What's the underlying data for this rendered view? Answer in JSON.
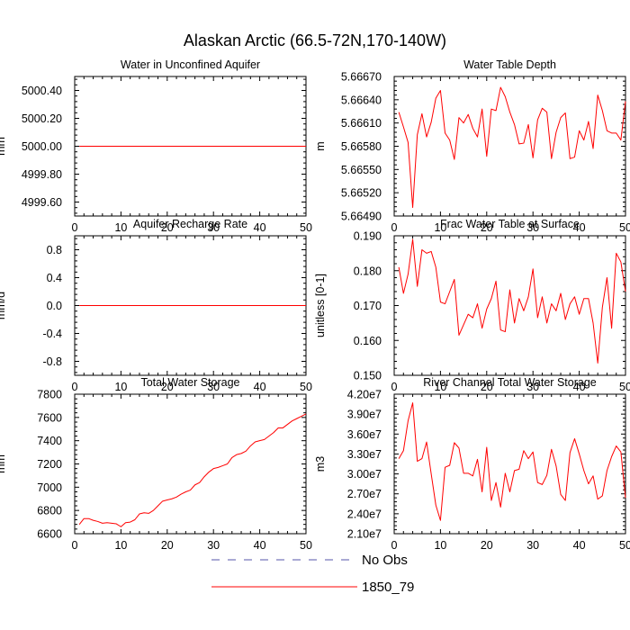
{
  "figure": {
    "title": "Alaskan Arctic (66.5-72N,170-140W)"
  },
  "chart_data": [
    {
      "type": "line",
      "title": "Water in Unconfined Aquifer",
      "ylabel": "mm",
      "xlabel": "",
      "xlim": [
        0,
        50
      ],
      "ylim": [
        4999.5,
        5000.5
      ],
      "xticks": [
        0,
        10,
        20,
        30,
        40,
        50
      ],
      "yticks": [
        4999.6,
        4999.8,
        5000.0,
        5000.2,
        5000.4
      ],
      "ytick_labels": [
        "4999.60",
        "4999.80",
        "5000.00",
        "5000.20",
        "5000.40"
      ],
      "grid": false,
      "series": [
        {
          "name": "1850_79",
          "color": "#ff0000",
          "x": [
            1,
            50
          ],
          "y": [
            5000.0,
            5000.0
          ]
        }
      ]
    },
    {
      "type": "line",
      "title": "Water Table Depth",
      "ylabel": "m",
      "xlabel": "",
      "xlim": [
        0,
        50
      ],
      "ylim": [
        5.6649,
        5.6667
      ],
      "xticks": [
        0,
        10,
        20,
        30,
        40,
        50
      ],
      "yticks": [
        5.6649,
        5.6652,
        5.6655,
        5.6658,
        5.6661,
        5.6664,
        5.6667
      ],
      "ytick_labels": [
        "5.66490",
        "5.66520",
        "5.66550",
        "5.66580",
        "5.66610",
        "5.66640",
        "5.66670"
      ],
      "grid": false,
      "series": [
        {
          "name": "1850_79",
          "color": "#ff0000",
          "x": [
            1,
            2,
            3,
            4,
            5,
            6,
            7,
            8,
            9,
            10,
            11,
            12,
            13,
            14,
            15,
            16,
            17,
            18,
            19,
            20,
            21,
            22,
            23,
            24,
            25,
            26,
            27,
            28,
            29,
            30,
            31,
            32,
            33,
            34,
            35,
            36,
            37,
            38,
            39,
            40,
            41,
            42,
            43,
            44,
            45,
            46,
            47,
            48,
            49,
            50
          ],
          "y": [
            5.66624,
            5.66605,
            5.66585,
            5.66501,
            5.66595,
            5.66622,
            5.66592,
            5.66611,
            5.66642,
            5.66652,
            5.66597,
            5.66588,
            5.66563,
            5.66617,
            5.6661,
            5.66621,
            5.66603,
            5.66592,
            5.66628,
            5.66567,
            5.66628,
            5.66626,
            5.66656,
            5.66644,
            5.66624,
            5.66608,
            5.66583,
            5.66584,
            5.66608,
            5.66565,
            5.66614,
            5.66629,
            5.66624,
            5.66564,
            5.66598,
            5.66617,
            5.66623,
            5.66564,
            5.66566,
            5.666,
            5.66588,
            5.66612,
            5.66577,
            5.66646,
            5.66626,
            5.666,
            5.66597,
            5.66597,
            5.66588,
            5.66638
          ]
        }
      ]
    },
    {
      "type": "line",
      "title": "Aquifer Recharge Rate",
      "ylabel": "mm/d",
      "xlabel": "",
      "xlim": [
        0,
        50
      ],
      "ylim": [
        -1.0,
        1.0
      ],
      "xticks": [
        0,
        10,
        20,
        30,
        40,
        50
      ],
      "yticks": [
        -0.8,
        -0.4,
        0.0,
        0.4,
        0.8
      ],
      "ytick_labels": [
        "-0.8",
        "-0.4",
        "0.0",
        "0.4",
        "0.8"
      ],
      "grid": false,
      "series": [
        {
          "name": "1850_79",
          "color": "#ff0000",
          "x": [
            1,
            50
          ],
          "y": [
            0.0,
            0.0
          ]
        }
      ]
    },
    {
      "type": "line",
      "title": "Frac Water Table at Surface",
      "ylabel": "unitless [0-1]",
      "xlabel": "",
      "xlim": [
        0,
        50
      ],
      "ylim": [
        0.15,
        0.19
      ],
      "xticks": [
        0,
        10,
        20,
        30,
        40,
        50
      ],
      "yticks": [
        0.15,
        0.16,
        0.17,
        0.18,
        0.19
      ],
      "ytick_labels": [
        "0.150",
        "0.160",
        "0.170",
        "0.180",
        "0.190"
      ],
      "grid": false,
      "series": [
        {
          "name": "1850_79",
          "color": "#ff0000",
          "x": [
            1,
            2,
            3,
            4,
            5,
            6,
            7,
            8,
            9,
            10,
            11,
            12,
            13,
            14,
            15,
            16,
            17,
            18,
            19,
            20,
            21,
            22,
            23,
            24,
            25,
            26,
            27,
            28,
            29,
            30,
            31,
            32,
            33,
            34,
            35,
            36,
            37,
            38,
            39,
            40,
            41,
            42,
            43,
            44,
            45,
            46,
            47,
            48,
            49,
            50
          ],
          "y": [
            0.181,
            0.1735,
            0.179,
            0.189,
            0.1755,
            0.186,
            0.185,
            0.1855,
            0.181,
            0.171,
            0.1705,
            0.174,
            0.1775,
            0.1615,
            0.1645,
            0.1675,
            0.1665,
            0.1705,
            0.1635,
            0.169,
            0.172,
            0.177,
            0.163,
            0.1625,
            0.1745,
            0.165,
            0.172,
            0.1685,
            0.1725,
            0.1805,
            0.1665,
            0.1725,
            0.165,
            0.1705,
            0.1685,
            0.1735,
            0.166,
            0.1705,
            0.1725,
            0.1675,
            0.172,
            0.172,
            0.165,
            0.1535,
            0.1695,
            0.178,
            0.1635,
            0.185,
            0.1825,
            0.174
          ]
        }
      ]
    },
    {
      "type": "line",
      "title": "Total Water Storage",
      "ylabel": "mm",
      "xlabel": "",
      "xlim": [
        0,
        50
      ],
      "ylim": [
        6600,
        7800
      ],
      "xticks": [
        0,
        10,
        20,
        30,
        40,
        50
      ],
      "yticks": [
        6600,
        6800,
        7000,
        7200,
        7400,
        7600,
        7800
      ],
      "ytick_labels": [
        "6600",
        "6800",
        "7000",
        "7200",
        "7400",
        "7600",
        "7800"
      ],
      "grid": false,
      "series": [
        {
          "name": "1850_79",
          "color": "#ff0000",
          "x": [
            1,
            2,
            3,
            4,
            5,
            6,
            7,
            8,
            9,
            10,
            11,
            12,
            13,
            14,
            15,
            16,
            17,
            18,
            19,
            20,
            21,
            22,
            23,
            24,
            25,
            26,
            27,
            28,
            29,
            30,
            31,
            32,
            33,
            34,
            35,
            36,
            37,
            38,
            39,
            40,
            41,
            42,
            43,
            44,
            45,
            46,
            47,
            48,
            49,
            50
          ],
          "y": [
            6680,
            6730,
            6730,
            6715,
            6705,
            6690,
            6695,
            6690,
            6685,
            6660,
            6695,
            6700,
            6720,
            6770,
            6780,
            6775,
            6800,
            6840,
            6880,
            6890,
            6900,
            6915,
            6940,
            6960,
            6975,
            7020,
            7040,
            7090,
            7130,
            7160,
            7170,
            7185,
            7200,
            7255,
            7280,
            7290,
            7310,
            7355,
            7390,
            7400,
            7410,
            7440,
            7470,
            7510,
            7510,
            7540,
            7570,
            7590,
            7610,
            7630
          ]
        }
      ]
    },
    {
      "type": "line",
      "title": "River Channel Total Water Storage",
      "ylabel": "m3",
      "xlabel": "",
      "xlim": [
        0,
        50
      ],
      "ylim": [
        21000000,
        42000000
      ],
      "xticks": [
        0,
        10,
        20,
        30,
        40,
        50
      ],
      "yticks": [
        21000000,
        24000000,
        27000000,
        30000000,
        33000000,
        36000000,
        39000000,
        42000000
      ],
      "ytick_labels": [
        "2.10e7",
        "2.40e7",
        "2.70e7",
        "3.00e7",
        "3.30e7",
        "3.60e7",
        "3.90e7",
        "4.20e7"
      ],
      "grid": false,
      "series": [
        {
          "name": "1850_79",
          "color": "#ff0000",
          "x": [
            1,
            2,
            3,
            4,
            5,
            6,
            7,
            8,
            9,
            10,
            11,
            12,
            13,
            14,
            15,
            16,
            17,
            18,
            19,
            20,
            21,
            22,
            23,
            24,
            25,
            26,
            27,
            28,
            29,
            30,
            31,
            32,
            33,
            34,
            35,
            36,
            37,
            38,
            39,
            40,
            41,
            42,
            43,
            44,
            45,
            46,
            47,
            48,
            49,
            50
          ],
          "y": [
            32300000,
            33500000,
            38000000,
            40700000,
            31900000,
            32300000,
            34800000,
            30000000,
            25300000,
            23000000,
            31000000,
            31300000,
            34700000,
            33900000,
            30100000,
            30100000,
            29700000,
            32200000,
            27300000,
            34000000,
            26000000,
            28700000,
            25000000,
            30100000,
            27300000,
            30500000,
            30700000,
            33500000,
            32300000,
            33300000,
            28700000,
            28400000,
            29800000,
            33700000,
            31200000,
            26900000,
            26000000,
            33200000,
            35300000,
            33000000,
            30500000,
            28500000,
            29700000,
            26200000,
            26700000,
            30500000,
            32600000,
            34200000,
            33300000,
            26400000
          ]
        }
      ]
    }
  ],
  "legend": {
    "placement": "bottom-center",
    "entries": [
      {
        "label": "No Obs",
        "color": "#5555aa",
        "style": "dashed"
      },
      {
        "label": "1850_79",
        "color": "#ff0000",
        "style": "solid"
      }
    ]
  }
}
